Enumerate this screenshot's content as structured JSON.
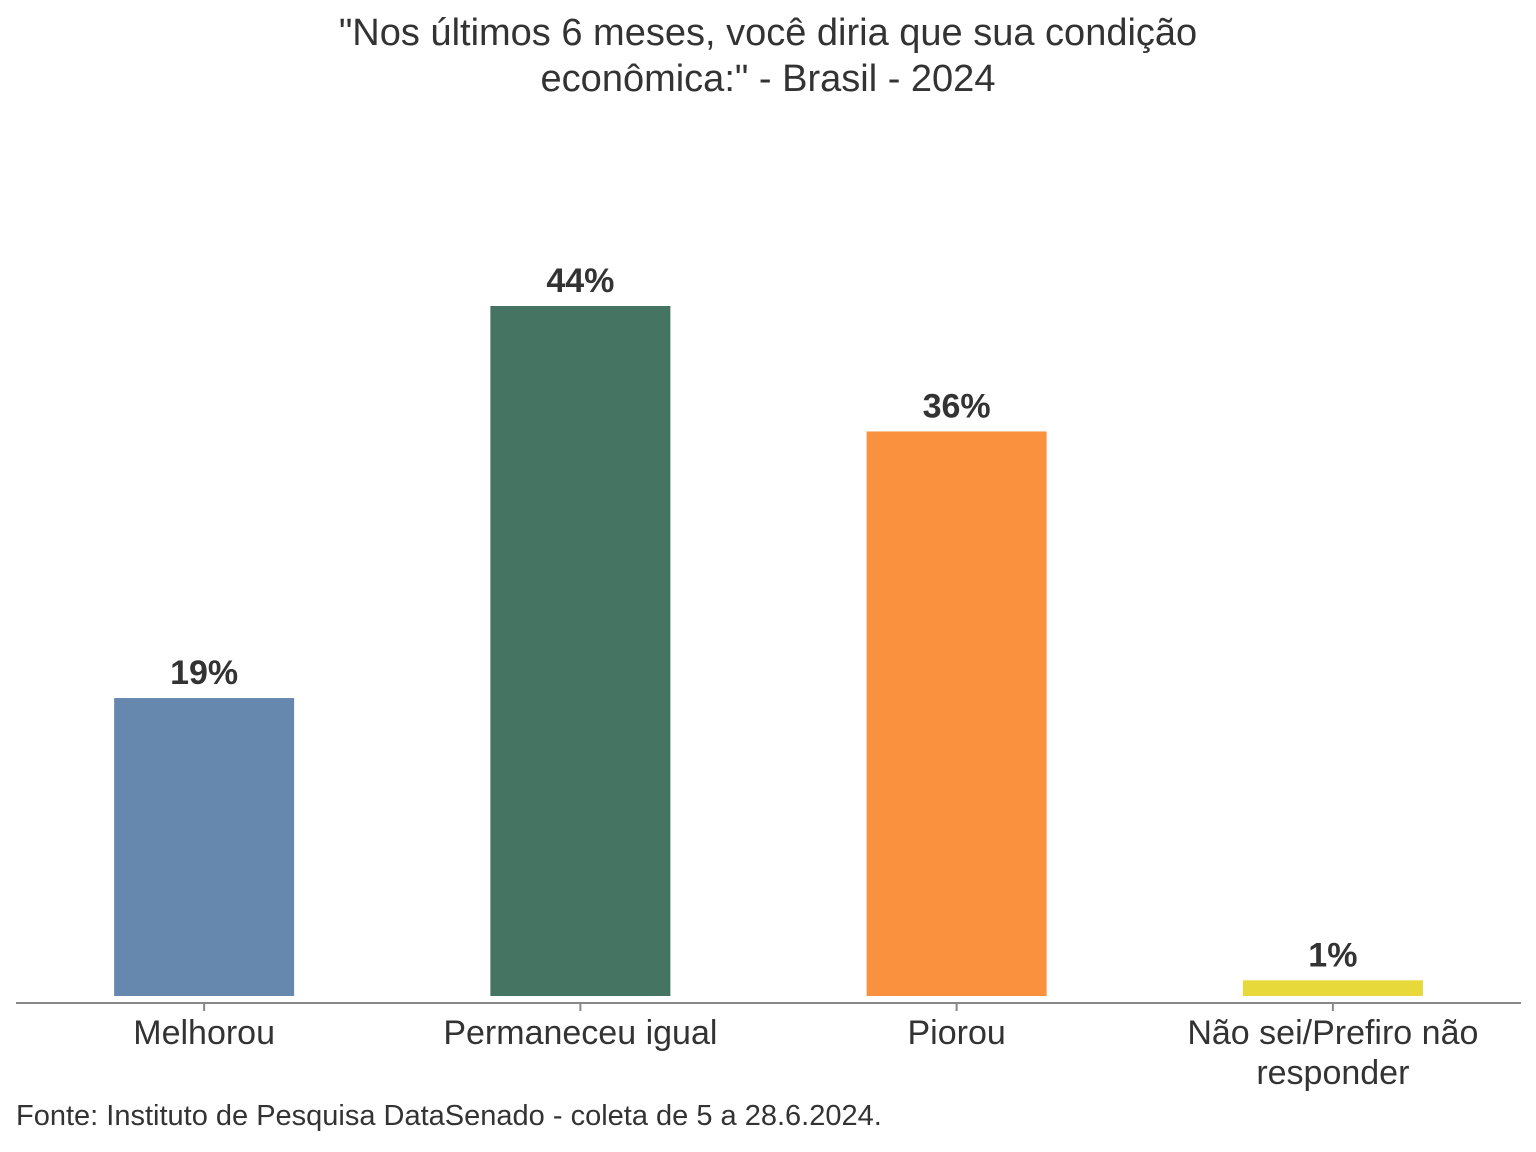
{
  "title_lines": [
    "\"Nos últimos 6 meses, você diria que sua condição",
    "econômica:\" - Brasil - 2024"
  ],
  "source": "Fonte: Instituto de Pesquisa DataSenado - coleta de 5 a 28.6.2024.",
  "chart_data": {
    "type": "bar",
    "title": "\"Nos últimos 6 meses, você diria que sua condição econômica:\" - Brasil - 2024",
    "categories": [
      [
        "Melhorou"
      ],
      [
        "Permaneceu igual"
      ],
      [
        "Piorou"
      ],
      [
        "Não sei/Prefiro não",
        "responder"
      ]
    ],
    "values": [
      19,
      44,
      36,
      1
    ],
    "value_labels": [
      "19%",
      "44%",
      "36%",
      "1%"
    ],
    "colors": [
      "#6688ae",
      "#457463",
      "#f9913f",
      "#e6d939"
    ],
    "ylim": [
      0,
      44
    ],
    "xlabel": "",
    "ylabel": "",
    "grid": false,
    "legend": "none"
  }
}
